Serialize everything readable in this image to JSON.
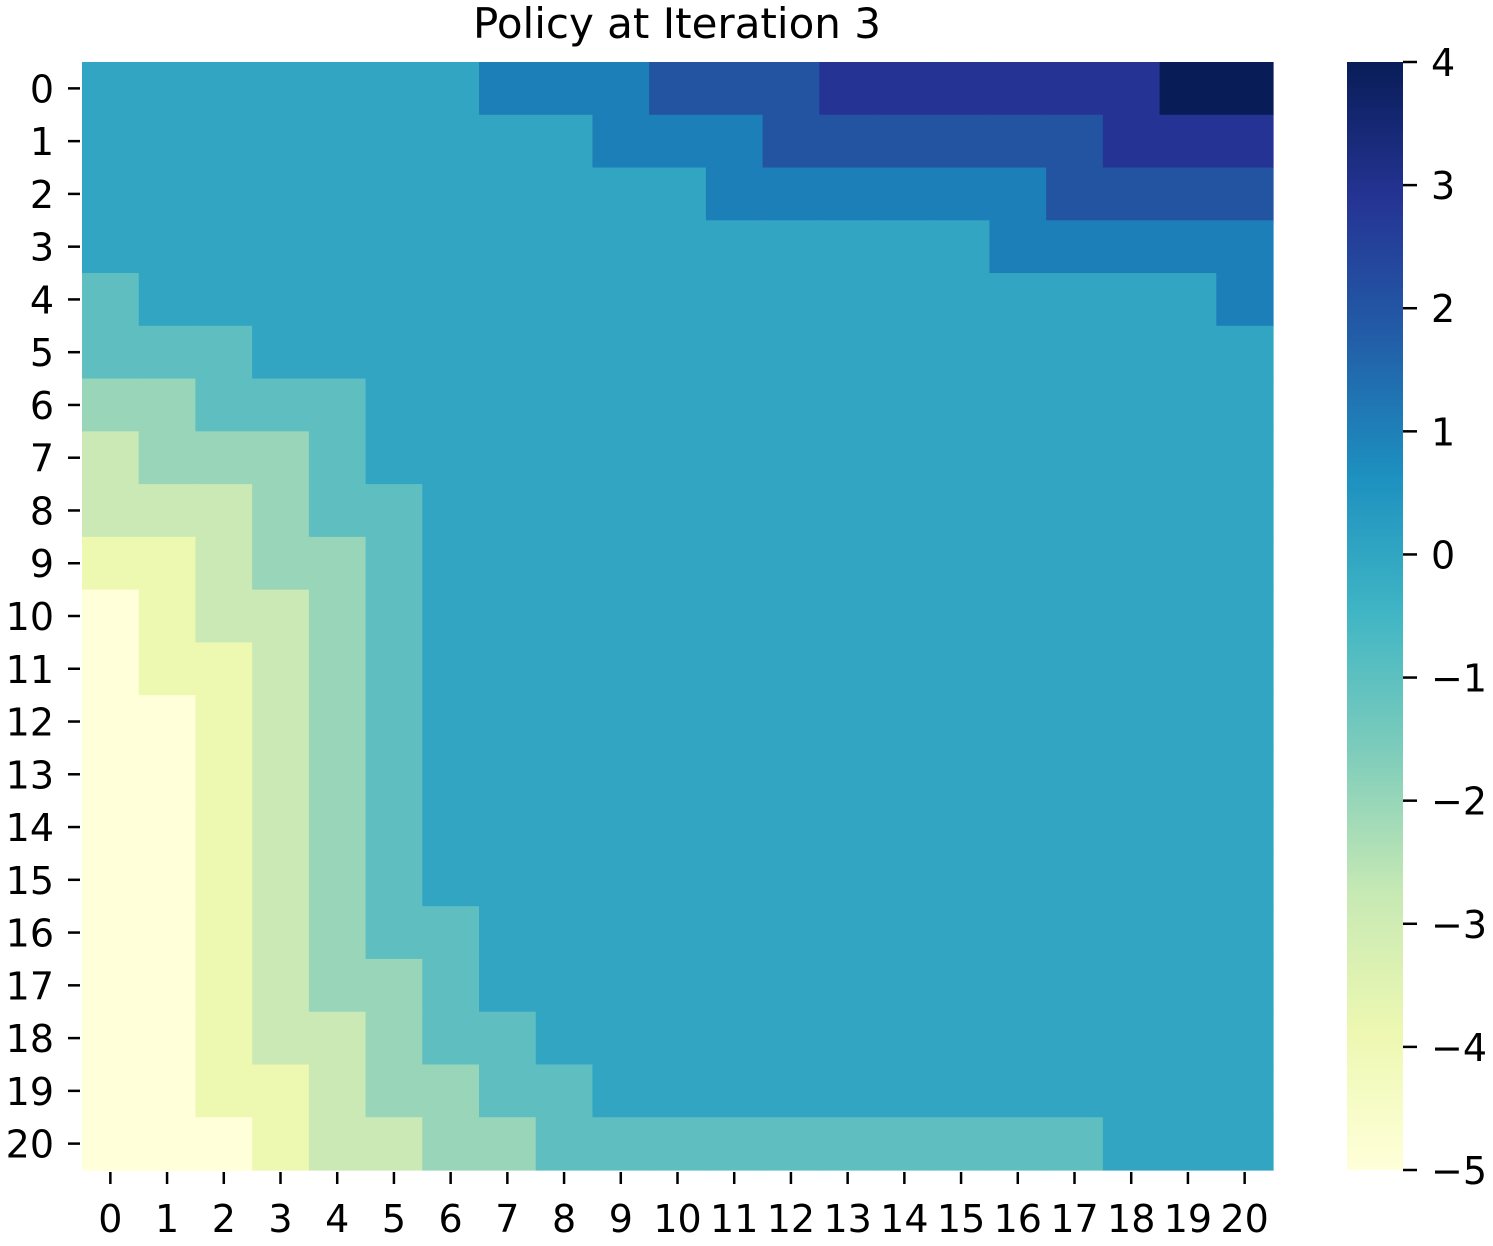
{
  "chart_data": {
    "type": "heatmap",
    "title": "Policy at Iteration 3",
    "xlabel": "",
    "ylabel": "",
    "x_ticks": [
      "0",
      "1",
      "2",
      "3",
      "4",
      "5",
      "6",
      "7",
      "8",
      "9",
      "10",
      "11",
      "12",
      "13",
      "14",
      "15",
      "16",
      "17",
      "18",
      "19",
      "20"
    ],
    "y_ticks": [
      "0",
      "1",
      "2",
      "3",
      "4",
      "5",
      "6",
      "7",
      "8",
      "9",
      "10",
      "11",
      "12",
      "13",
      "14",
      "15",
      "16",
      "17",
      "18",
      "19",
      "20"
    ],
    "values": [
      [
        0,
        0,
        0,
        0,
        0,
        0,
        0,
        1,
        1,
        1,
        2,
        2,
        2,
        3,
        3,
        3,
        3,
        3,
        3,
        4,
        4
      ],
      [
        0,
        0,
        0,
        0,
        0,
        0,
        0,
        0,
        0,
        1,
        1,
        1,
        2,
        2,
        2,
        2,
        2,
        2,
        3,
        3,
        3
      ],
      [
        0,
        0,
        0,
        0,
        0,
        0,
        0,
        0,
        0,
        0,
        0,
        1,
        1,
        1,
        1,
        1,
        1,
        2,
        2,
        2,
        2
      ],
      [
        0,
        0,
        0,
        0,
        0,
        0,
        0,
        0,
        0,
        0,
        0,
        0,
        0,
        0,
        0,
        0,
        1,
        1,
        1,
        1,
        1
      ],
      [
        -1,
        0,
        0,
        0,
        0,
        0,
        0,
        0,
        0,
        0,
        0,
        0,
        0,
        0,
        0,
        0,
        0,
        0,
        0,
        0,
        1
      ],
      [
        -1,
        -1,
        -1,
        0,
        0,
        0,
        0,
        0,
        0,
        0,
        0,
        0,
        0,
        0,
        0,
        0,
        0,
        0,
        0,
        0,
        0
      ],
      [
        -2,
        -2,
        -1,
        -1,
        -1,
        0,
        0,
        0,
        0,
        0,
        0,
        0,
        0,
        0,
        0,
        0,
        0,
        0,
        0,
        0,
        0
      ],
      [
        -3,
        -2,
        -2,
        -2,
        -1,
        0,
        0,
        0,
        0,
        0,
        0,
        0,
        0,
        0,
        0,
        0,
        0,
        0,
        0,
        0,
        0
      ],
      [
        -3,
        -3,
        -3,
        -2,
        -1,
        -1,
        0,
        0,
        0,
        0,
        0,
        0,
        0,
        0,
        0,
        0,
        0,
        0,
        0,
        0,
        0
      ],
      [
        -4,
        -4,
        -3,
        -2,
        -2,
        -1,
        0,
        0,
        0,
        0,
        0,
        0,
        0,
        0,
        0,
        0,
        0,
        0,
        0,
        0,
        0
      ],
      [
        -5,
        -4,
        -3,
        -3,
        -2,
        -1,
        0,
        0,
        0,
        0,
        0,
        0,
        0,
        0,
        0,
        0,
        0,
        0,
        0,
        0,
        0
      ],
      [
        -5,
        -4,
        -4,
        -3,
        -2,
        -1,
        0,
        0,
        0,
        0,
        0,
        0,
        0,
        0,
        0,
        0,
        0,
        0,
        0,
        0,
        0
      ],
      [
        -5,
        -5,
        -4,
        -3,
        -2,
        -1,
        0,
        0,
        0,
        0,
        0,
        0,
        0,
        0,
        0,
        0,
        0,
        0,
        0,
        0,
        0
      ],
      [
        -5,
        -5,
        -4,
        -3,
        -2,
        -1,
        0,
        0,
        0,
        0,
        0,
        0,
        0,
        0,
        0,
        0,
        0,
        0,
        0,
        0,
        0
      ],
      [
        -5,
        -5,
        -4,
        -3,
        -2,
        -1,
        0,
        0,
        0,
        0,
        0,
        0,
        0,
        0,
        0,
        0,
        0,
        0,
        0,
        0,
        0
      ],
      [
        -5,
        -5,
        -4,
        -3,
        -2,
        -1,
        0,
        0,
        0,
        0,
        0,
        0,
        0,
        0,
        0,
        0,
        0,
        0,
        0,
        0,
        0
      ],
      [
        -5,
        -5,
        -4,
        -3,
        -2,
        -1,
        -1,
        0,
        0,
        0,
        0,
        0,
        0,
        0,
        0,
        0,
        0,
        0,
        0,
        0,
        0
      ],
      [
        -5,
        -5,
        -4,
        -3,
        -2,
        -2,
        -1,
        0,
        0,
        0,
        0,
        0,
        0,
        0,
        0,
        0,
        0,
        0,
        0,
        0,
        0
      ],
      [
        -5,
        -5,
        -4,
        -3,
        -3,
        -2,
        -1,
        -1,
        0,
        0,
        0,
        0,
        0,
        0,
        0,
        0,
        0,
        0,
        0,
        0,
        0
      ],
      [
        -5,
        -5,
        -4,
        -4,
        -3,
        -2,
        -2,
        -1,
        -1,
        0,
        0,
        0,
        0,
        0,
        0,
        0,
        0,
        0,
        0,
        0,
        0
      ],
      [
        -5,
        -5,
        -5,
        -4,
        -3,
        -3,
        -2,
        -2,
        -1,
        -1,
        -1,
        -1,
        -1,
        -1,
        -1,
        -1,
        -1,
        -1,
        0,
        0,
        0
      ]
    ],
    "colorbar": {
      "min": -5,
      "max": 4,
      "ticks": [
        4,
        3,
        2,
        1,
        0,
        -1,
        -2,
        -3,
        -4,
        -5
      ],
      "tick_labels": [
        "4",
        "3",
        "2",
        "1",
        "0",
        "−1",
        "−2",
        "−3",
        "−4",
        "−5"
      ]
    },
    "colormap": "YlGnBu",
    "color_levels": {
      "-5": "#ffffd9",
      "-4": "#edf8b1",
      "-3": "#cbe9b4",
      "-2": "#98d5b9",
      "-1": "#5fbfc0",
      "0": "#32a5c3",
      "1": "#1d7fb8",
      "2": "#2354a2",
      "3": "#253494",
      "4": "#081d58"
    },
    "grid": false,
    "legend": "none"
  }
}
